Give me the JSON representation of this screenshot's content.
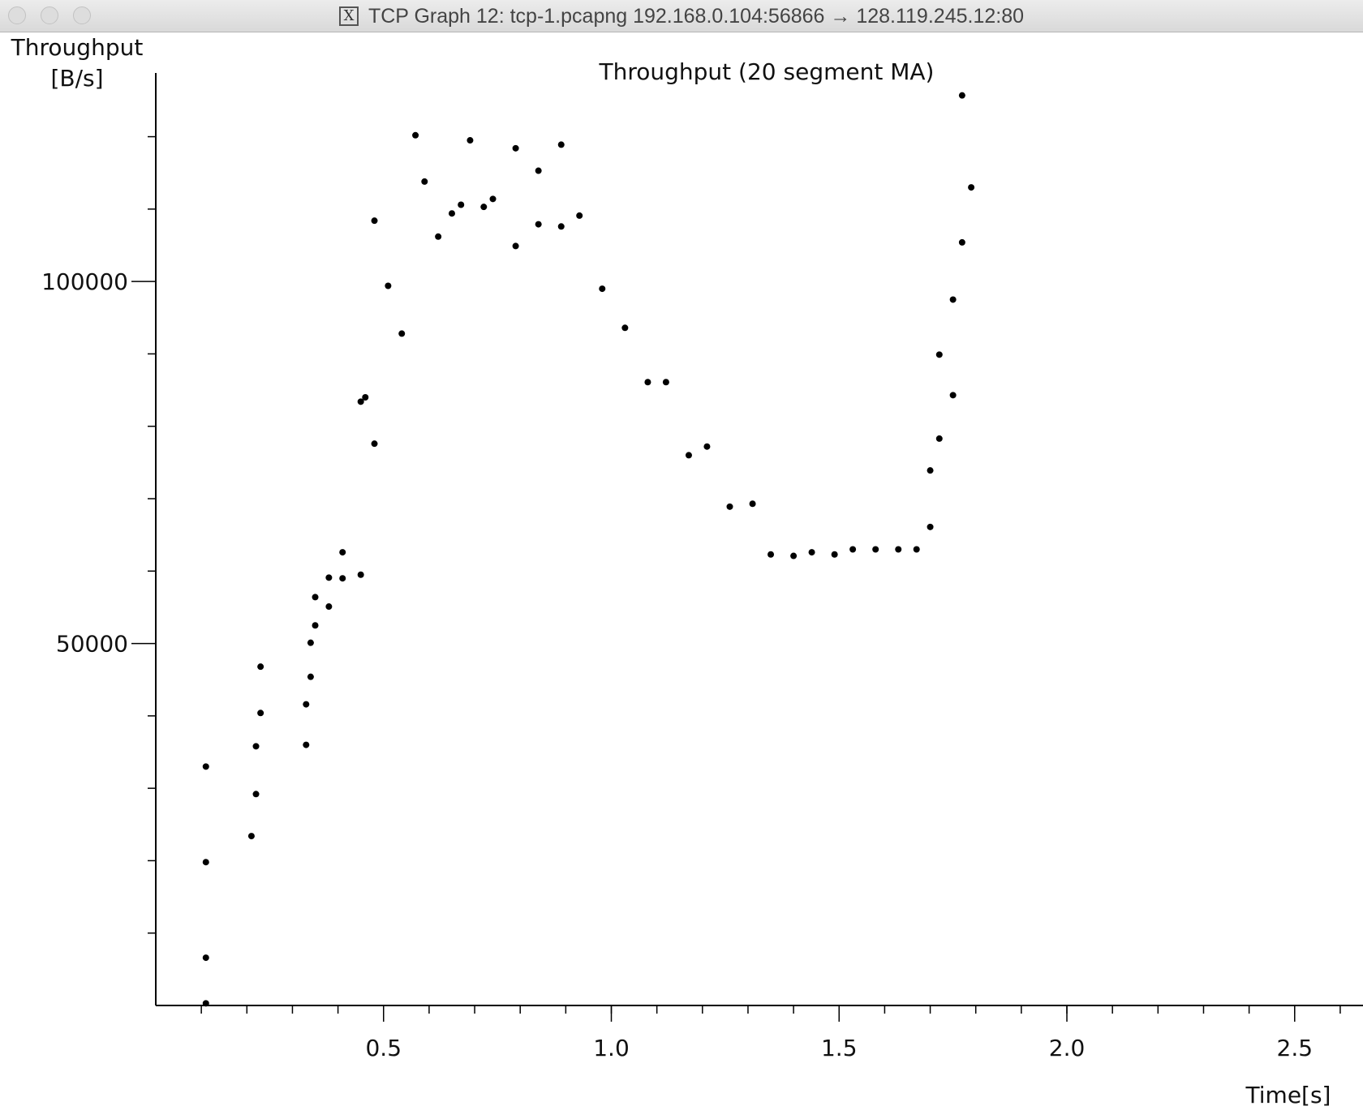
{
  "window": {
    "title": "TCP Graph 12: tcp-1.pcapng 192.168.0.104:56866 → 128.119.245.12:80",
    "icon": "x11-icon"
  },
  "chart_data": {
    "type": "scatter",
    "title": "Throughput (20 segment MA)",
    "ylabel_line1": "Throughput",
    "ylabel_line2": "[B/s]",
    "xlabel": "Time[s]",
    "xlim": [
      0.0,
      2.65
    ],
    "ylim": [
      0,
      126000
    ],
    "x_ticks": [
      0.5,
      1.0,
      1.5,
      2.0,
      2.5
    ],
    "x_tick_labels": [
      "0.5",
      "1.0",
      "1.5",
      "2.0",
      "2.5"
    ],
    "x_minor_step": 0.1,
    "y_ticks": [
      50000,
      100000
    ],
    "y_tick_labels": [
      "50000",
      "100000"
    ],
    "y_minor_step": 10000,
    "grid": false,
    "marker_color": "#000000",
    "series": [
      {
        "points": [
          [
            0.11,
            33000
          ],
          [
            0.11,
            19800
          ],
          [
            0.11,
            6600
          ],
          [
            0.11,
            300
          ],
          [
            0.21,
            23400
          ],
          [
            0.22,
            29200
          ],
          [
            0.22,
            35800
          ],
          [
            0.23,
            40400
          ],
          [
            0.23,
            46800
          ],
          [
            0.33,
            36000
          ],
          [
            0.33,
            41600
          ],
          [
            0.34,
            45400
          ],
          [
            0.34,
            50100
          ],
          [
            0.35,
            52500
          ],
          [
            0.35,
            56400
          ],
          [
            0.38,
            59100
          ],
          [
            0.38,
            55100
          ],
          [
            0.41,
            59000
          ],
          [
            0.41,
            62600
          ],
          [
            0.45,
            59500
          ],
          [
            0.45,
            83400
          ],
          [
            0.46,
            84000
          ],
          [
            0.48,
            77600
          ],
          [
            0.48,
            108400
          ],
          [
            0.51,
            99400
          ],
          [
            0.54,
            92800
          ],
          [
            0.57,
            120200
          ],
          [
            0.59,
            113800
          ],
          [
            0.62,
            106200
          ],
          [
            0.65,
            109400
          ],
          [
            0.67,
            110600
          ],
          [
            0.69,
            119500
          ],
          [
            0.72,
            110300
          ],
          [
            0.74,
            111400
          ],
          [
            0.79,
            118400
          ],
          [
            0.79,
            104900
          ],
          [
            0.84,
            115300
          ],
          [
            0.84,
            107900
          ],
          [
            0.89,
            118900
          ],
          [
            0.89,
            107600
          ],
          [
            0.93,
            109100
          ],
          [
            0.98,
            99000
          ],
          [
            1.03,
            93600
          ],
          [
            1.08,
            86100
          ],
          [
            1.12,
            86100
          ],
          [
            1.17,
            76000
          ],
          [
            1.21,
            77200
          ],
          [
            1.26,
            68900
          ],
          [
            1.31,
            69300
          ],
          [
            1.35,
            62300
          ],
          [
            1.4,
            62100
          ],
          [
            1.44,
            62600
          ],
          [
            1.49,
            62300
          ],
          [
            1.53,
            63000
          ],
          [
            1.58,
            63000
          ],
          [
            1.63,
            63000
          ],
          [
            1.67,
            63000
          ],
          [
            1.7,
            66100
          ],
          [
            1.7,
            73900
          ],
          [
            1.72,
            78300
          ],
          [
            1.72,
            89900
          ],
          [
            1.75,
            84300
          ],
          [
            1.75,
            97500
          ],
          [
            1.77,
            105400
          ],
          [
            1.77,
            125700
          ],
          [
            1.79,
            113000
          ]
        ]
      }
    ]
  }
}
